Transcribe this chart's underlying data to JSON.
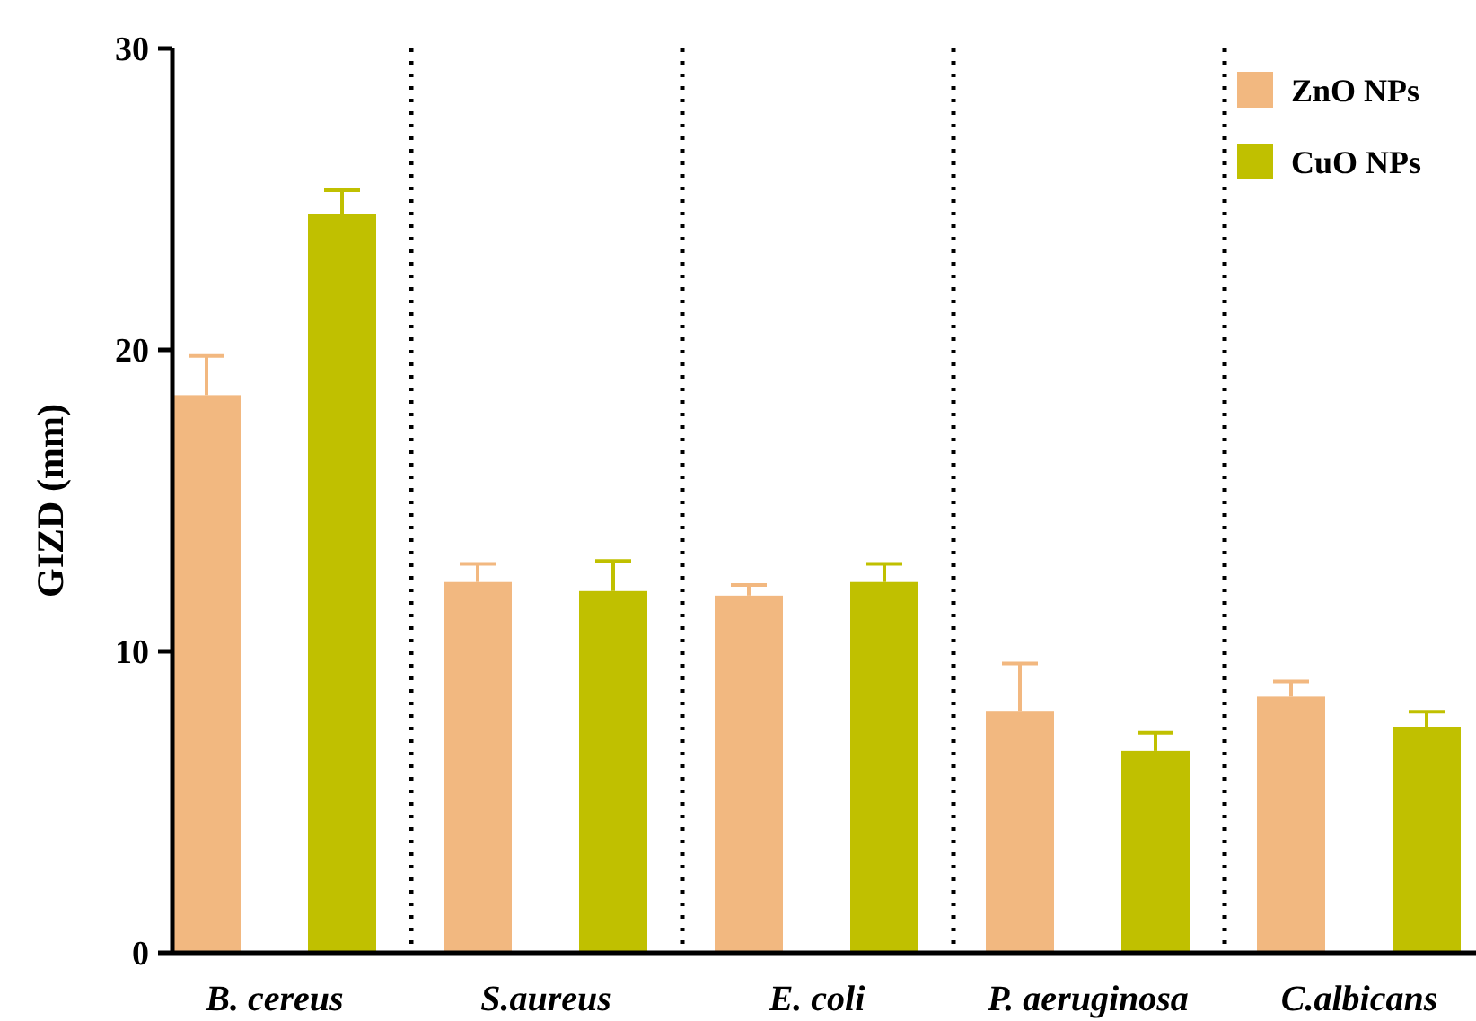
{
  "chart_data": {
    "type": "bar",
    "ylabel": "GIZD (mm)",
    "categories": [
      "B. cereus",
      "S.aureus",
      "E. coli",
      "P. aeruginosa",
      "C.albicans"
    ],
    "series": [
      {
        "name": "ZnO NPs",
        "color": "#f2b880",
        "values": [
          18.5,
          12.3,
          11.85,
          8.0,
          8.5
        ],
        "errors": [
          [
            18.5,
            19.8
          ],
          [
            12.3,
            12.9
          ],
          [
            11.85,
            12.2
          ],
          [
            8.0,
            9.6
          ],
          [
            8.5,
            9.0
          ]
        ]
      },
      {
        "name": "CuO NPs",
        "color": "#c0c000",
        "values": [
          24.5,
          12.0,
          12.3,
          6.7,
          7.5
        ],
        "errors": [
          [
            24.5,
            25.3
          ],
          [
            12.0,
            13.0
          ],
          [
            12.3,
            12.9
          ],
          [
            6.7,
            7.3
          ],
          [
            7.5,
            8.0
          ]
        ]
      }
    ],
    "ylim": [
      0,
      30
    ],
    "yticks": [
      0,
      10,
      20,
      30
    ],
    "grid": false,
    "legend": "top right"
  }
}
